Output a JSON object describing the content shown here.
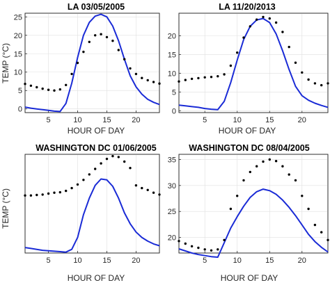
{
  "colors": {
    "model_line": "#1a2bd6",
    "observed_dots": "#000000",
    "grid": "#dfdfdf"
  },
  "chart_data": [
    {
      "type": "line",
      "title": "LA 03/05/2005",
      "xlabel": "HOUR OF DAY",
      "ylabel": "TEMP (°C)",
      "xlim": [
        1,
        24
      ],
      "ylim": [
        -1,
        26
      ],
      "xticks": [
        5,
        10,
        15,
        20
      ],
      "yticks": [
        0,
        5,
        10,
        15,
        20,
        25
      ],
      "grid": true,
      "series": [
        {
          "style": "line",
          "x": [
            1,
            2,
            3,
            4,
            5,
            6,
            7,
            8,
            9,
            10,
            11,
            12,
            13,
            14,
            15,
            16,
            17,
            18,
            19,
            20,
            21,
            22,
            23,
            24
          ],
          "values": [
            0.5,
            0.2,
            0.0,
            -0.2,
            -0.4,
            -0.6,
            -0.7,
            1.5,
            7.0,
            14.0,
            20.0,
            23.5,
            25.2,
            25.7,
            25.0,
            22.5,
            18.5,
            13.5,
            9.0,
            6.0,
            4.0,
            2.6,
            1.8,
            1.2
          ]
        },
        {
          "style": "markers",
          "x": [
            1,
            2,
            3,
            4,
            5,
            6,
            7,
            8,
            9,
            10,
            11,
            12,
            13,
            14,
            15,
            16,
            17,
            18,
            19,
            20,
            21,
            22,
            23,
            24
          ],
          "values": [
            6.8,
            6.3,
            5.9,
            5.5,
            5.2,
            5.0,
            5.3,
            6.5,
            9.5,
            12.5,
            15.5,
            18.2,
            20.0,
            20.3,
            19.5,
            18.5,
            16.0,
            13.5,
            11.0,
            9.5,
            8.4,
            7.8,
            7.3,
            6.9
          ]
        }
      ]
    },
    {
      "type": "line",
      "title": "LA 11/20/2013",
      "xlabel": "HOUR OF DAY",
      "ylabel": "",
      "xlim": [
        1,
        24
      ],
      "ylim": [
        -0.5,
        26
      ],
      "xticks": [
        5,
        10,
        15,
        20
      ],
      "yticks": [
        0,
        5,
        10,
        15,
        20
      ],
      "grid": true,
      "series": [
        {
          "style": "line",
          "x": [
            1,
            2,
            3,
            4,
            5,
            6,
            7,
            8,
            9,
            10,
            11,
            12,
            13,
            14,
            15,
            16,
            17,
            18,
            19,
            20,
            21,
            22,
            23,
            24
          ],
          "values": [
            1.5,
            1.3,
            1.1,
            0.9,
            0.6,
            0.4,
            0.3,
            2.5,
            7.5,
            13.5,
            19.0,
            22.5,
            24.2,
            24.6,
            23.5,
            20.5,
            16.0,
            11.0,
            6.5,
            4.0,
            2.8,
            2.0,
            1.4,
            0.9
          ]
        },
        {
          "style": "markers",
          "x": [
            1,
            2,
            3,
            4,
            5,
            6,
            7,
            8,
            9,
            10,
            11,
            12,
            13,
            14,
            15,
            16,
            17,
            18,
            19,
            20,
            21,
            22,
            23,
            24
          ],
          "values": [
            7.8,
            8.2,
            8.5,
            8.7,
            8.9,
            9.0,
            9.2,
            9.7,
            12.0,
            15.5,
            19.5,
            22.5,
            24.3,
            25.0,
            24.6,
            23.5,
            21.0,
            17.0,
            12.8,
            10.2,
            8.3,
            7.3,
            6.8,
            7.3
          ]
        }
      ]
    },
    {
      "type": "line",
      "title": "WASHINGTON DC 01/06/2005",
      "xlabel": "HOUR OF DAY",
      "ylabel": "TEMP (°C)",
      "xlim": [
        1,
        24
      ],
      "ylim": [
        -6.6,
        4.2
      ],
      "grid": true,
      "xticks": [
        5,
        10,
        15,
        20
      ],
      "yticks": [],
      "series": [
        {
          "style": "line",
          "x": [
            1,
            2,
            3,
            4,
            5,
            6,
            7,
            8,
            9,
            10,
            11,
            12,
            13,
            14,
            15,
            16,
            17,
            18,
            19,
            20,
            21,
            22,
            23,
            24
          ],
          "values": [
            -6.0,
            -6.1,
            -6.2,
            -6.3,
            -6.35,
            -6.4,
            -6.45,
            -6.5,
            -6.2,
            -4.9,
            -2.4,
            -0.6,
            0.8,
            1.5,
            1.4,
            0.7,
            -0.6,
            -2.2,
            -3.4,
            -4.3,
            -4.9,
            -5.3,
            -5.6,
            -5.8
          ]
        },
        {
          "style": "markers",
          "x": [
            1,
            2,
            3,
            4,
            5,
            6,
            7,
            8,
            9,
            10,
            11,
            12,
            13,
            14,
            15,
            16,
            17,
            18,
            19,
            20,
            21,
            22,
            23,
            24
          ],
          "values": [
            -0.3,
            -0.3,
            -0.25,
            -0.2,
            -0.1,
            0.0,
            0.05,
            0.2,
            0.5,
            0.9,
            1.4,
            2.0,
            2.6,
            3.2,
            3.7,
            4.0,
            3.9,
            3.4,
            2.7,
            0.8,
            0.5,
            0.3,
            0.0,
            -0.2
          ]
        }
      ]
    },
    {
      "type": "line",
      "title": "WASHINGTON DC 08/04/2005",
      "xlabel": "HOUR OF DAY",
      "ylabel": "",
      "xlim": [
        1,
        24
      ],
      "ylim": [
        17,
        36
      ],
      "xticks": [
        5,
        10,
        15,
        20
      ],
      "yticks": [
        20,
        25,
        30,
        35
      ],
      "grid": true,
      "series": [
        {
          "style": "line",
          "x": [
            1,
            2,
            3,
            4,
            5,
            6,
            7,
            8,
            9,
            10,
            11,
            12,
            13,
            14,
            15,
            16,
            17,
            18,
            19,
            20,
            21,
            22,
            23,
            24
          ],
          "values": [
            17.8,
            17.4,
            17.0,
            16.7,
            16.5,
            16.3,
            16.2,
            19.0,
            21.8,
            24.0,
            26.0,
            27.7,
            28.8,
            29.3,
            29.0,
            28.3,
            27.2,
            25.8,
            24.2,
            22.4,
            20.6,
            19.2,
            18.1,
            17.2
          ]
        },
        {
          "style": "markers",
          "x": [
            1,
            2,
            3,
            4,
            5,
            6,
            7,
            8,
            9,
            10,
            11,
            12,
            13,
            14,
            15,
            16,
            17,
            18,
            19,
            20,
            21,
            22,
            23,
            24
          ],
          "values": [
            19.3,
            18.8,
            18.3,
            18.0,
            17.7,
            17.5,
            17.7,
            19.5,
            25.5,
            28.0,
            31.0,
            32.6,
            33.7,
            34.6,
            35.0,
            34.7,
            33.7,
            32.1,
            31.0,
            28.0,
            25.5,
            22.4,
            21.0,
            19.5
          ]
        }
      ]
    }
  ]
}
